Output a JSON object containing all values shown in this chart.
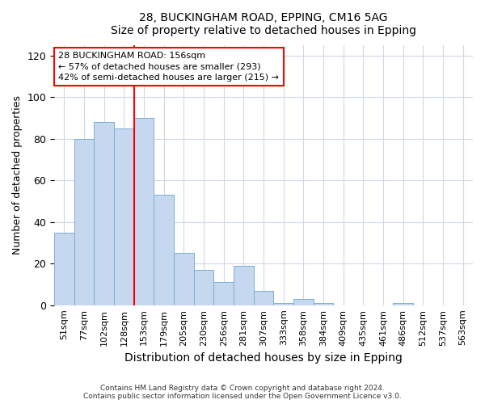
{
  "title1": "28, BUCKINGHAM ROAD, EPPING, CM16 5AG",
  "title2": "Size of property relative to detached houses in Epping",
  "xlabel": "Distribution of detached houses by size in Epping",
  "ylabel": "Number of detached properties",
  "categories": [
    "51sqm",
    "77sqm",
    "102sqm",
    "128sqm",
    "153sqm",
    "179sqm",
    "205sqm",
    "230sqm",
    "256sqm",
    "281sqm",
    "307sqm",
    "333sqm",
    "358sqm",
    "384sqm",
    "409sqm",
    "435sqm",
    "461sqm",
    "486sqm",
    "512sqm",
    "537sqm",
    "563sqm"
  ],
  "values": [
    35,
    80,
    88,
    85,
    90,
    53,
    25,
    17,
    11,
    19,
    7,
    1,
    3,
    1,
    0,
    0,
    0,
    1,
    0,
    0,
    0
  ],
  "bar_color": "#c5d8f0",
  "bar_edge_color": "#7bafd4",
  "grid_color": "#d0d8e8",
  "background_color": "#ffffff",
  "red_line_bin_index": 4,
  "annotation_line1": "28 BUCKINGHAM ROAD: 156sqm",
  "annotation_line2": "← 57% of detached houses are smaller (293)",
  "annotation_line3": "42% of semi-detached houses are larger (215) →",
  "footnote1": "Contains HM Land Registry data © Crown copyright and database right 2024.",
  "footnote2": "Contains public sector information licensed under the Open Government Licence v3.0.",
  "ylim_max": 125,
  "yticks": [
    0,
    20,
    40,
    60,
    80,
    100,
    120
  ]
}
